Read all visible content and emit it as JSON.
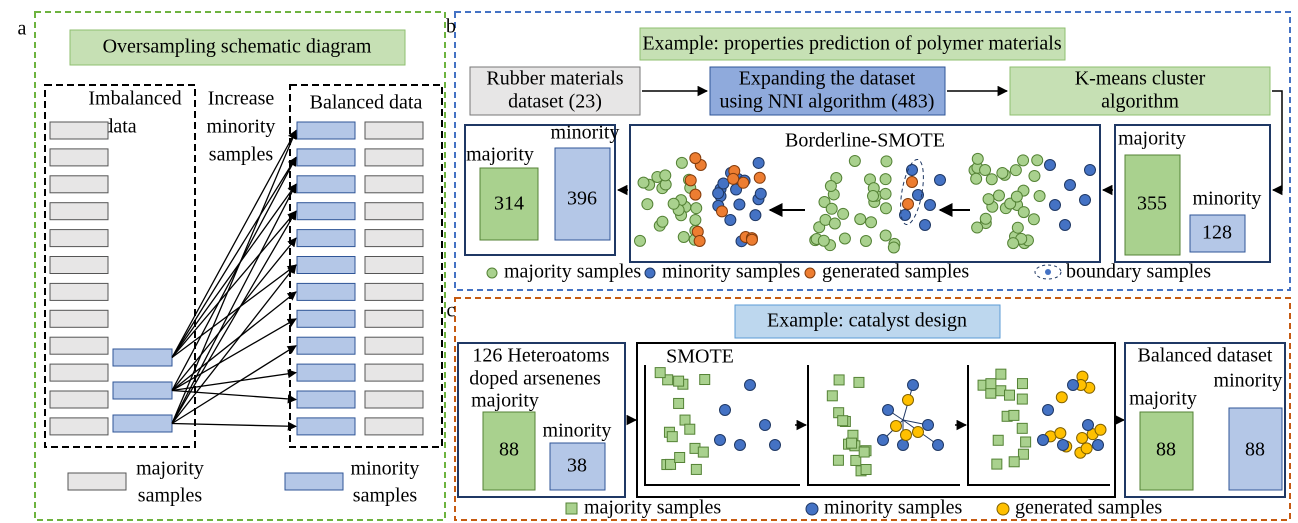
{
  "panel_a": {
    "label": "a",
    "title": "Oversampling schematic diagram",
    "imbalanced": [
      "Imbalanced",
      "data"
    ],
    "increase": [
      "Increase",
      "minority",
      "samples"
    ],
    "balanced": "Balanced data",
    "legend": {
      "majority": [
        "majority",
        "samples"
      ],
      "minority": [
        "minority",
        "samples"
      ]
    }
  },
  "panel_b": {
    "label": "b",
    "title": "Example: properties prediction of polymer materials",
    "steps": [
      [
        "Rubber materials",
        "dataset (23)"
      ],
      [
        "Expanding the dataset",
        "using NNI algorithm (483)"
      ],
      [
        "K-means cluster",
        "algorithm"
      ]
    ],
    "result": {
      "majority_label": "majority",
      "majority": 314,
      "minority_label": "minority",
      "minority": 396
    },
    "method": "Borderline-SMOTE",
    "cluster": {
      "majority_label": "majority",
      "majority": 355,
      "minority_label": "minority",
      "minority": 128
    },
    "legend": [
      "majority samples",
      "minority samples",
      "generated samples",
      "boundary samples"
    ]
  },
  "panel_c": {
    "label": "c",
    "title": "Example: catalyst design",
    "source": [
      "126 Heteroatoms",
      "doped arsenenes"
    ],
    "input": {
      "majority_label": "majority",
      "majority": 88,
      "minority_label": "minority",
      "minority": 38
    },
    "method": "SMOTE",
    "output": {
      "title": "Balanced dataset",
      "majority_label": "majority",
      "majority": 88,
      "minority_label": "minority",
      "minority": 88
    },
    "legend": [
      "majority samples",
      "minority samples",
      "generated samples"
    ]
  }
}
